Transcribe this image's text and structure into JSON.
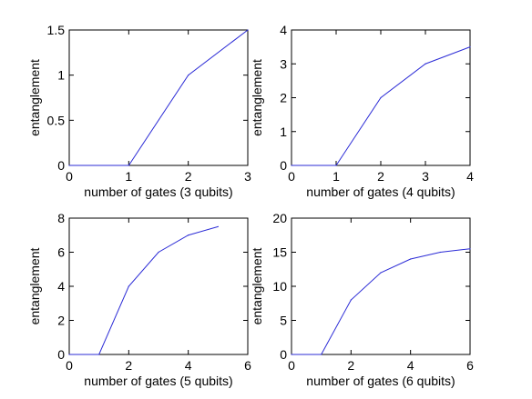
{
  "chart_data": [
    {
      "type": "line",
      "xlabel": "number of gates (3 qubits)",
      "ylabel": "entanglement",
      "xlim": [
        0,
        3
      ],
      "ylim": [
        0,
        1.5
      ],
      "xticks": [
        "0",
        "1",
        "2",
        "3"
      ],
      "yticks": [
        "0",
        "0.5",
        "1",
        "1.5"
      ],
      "grid": false,
      "line_color": "#2b2bd6",
      "series": [
        {
          "x": [
            0,
            1,
            2,
            3
          ],
          "y": [
            0,
            0,
            1,
            1.5
          ]
        }
      ]
    },
    {
      "type": "line",
      "xlabel": "number of gates (4 qubits)",
      "ylabel": "entanglement",
      "xlim": [
        0,
        4
      ],
      "ylim": [
        0,
        4
      ],
      "xticks": [
        "0",
        "1",
        "2",
        "3",
        "4"
      ],
      "yticks": [
        "0",
        "1",
        "2",
        "3",
        "4"
      ],
      "grid": false,
      "line_color": "#2b2bd6",
      "series": [
        {
          "x": [
            0,
            1,
            2,
            3,
            4
          ],
          "y": [
            0,
            0,
            2,
            3,
            3.5
          ]
        }
      ]
    },
    {
      "type": "line",
      "xlabel": "number of gates (5 qubits)",
      "ylabel": "entanglement",
      "xlim": [
        0,
        6
      ],
      "ylim": [
        0,
        8
      ],
      "xticks": [
        "0",
        "2",
        "4",
        "6"
      ],
      "yticks": [
        "0",
        "2",
        "4",
        "6",
        "8"
      ],
      "grid": false,
      "line_color": "#2b2bd6",
      "series": [
        {
          "x": [
            0,
            1,
            2,
            3,
            4,
            5
          ],
          "y": [
            0,
            0,
            4,
            6,
            7,
            7.5
          ]
        }
      ]
    },
    {
      "type": "line",
      "xlabel": "number of gates (6 qubits)",
      "ylabel": "entanglement",
      "xlim": [
        0,
        6
      ],
      "ylim": [
        0,
        20
      ],
      "xticks": [
        "0",
        "2",
        "4",
        "6"
      ],
      "yticks": [
        "0",
        "5",
        "10",
        "15",
        "20"
      ],
      "grid": false,
      "line_color": "#2b2bd6",
      "series": [
        {
          "x": [
            0,
            1,
            2,
            3,
            4,
            5,
            6
          ],
          "y": [
            0,
            0,
            8,
            12,
            14,
            15,
            15.5
          ]
        }
      ]
    }
  ]
}
